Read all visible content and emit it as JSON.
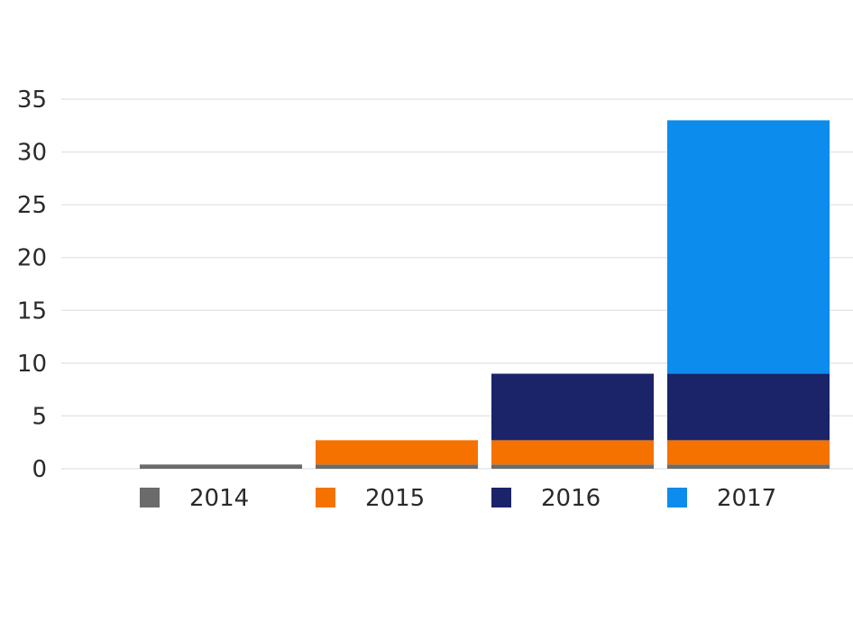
{
  "chart_data": {
    "type": "bar",
    "stacked": true,
    "categories": [
      "2014",
      "2015",
      "2016",
      "2017"
    ],
    "series": [
      {
        "name": "2014",
        "color": "#6b6b6b",
        "values": [
          0.4,
          0.4,
          0.4,
          0.4
        ]
      },
      {
        "name": "2015",
        "color": "#f57200",
        "values": [
          0,
          2.3,
          2.3,
          2.3
        ]
      },
      {
        "name": "2016",
        "color": "#1b2469",
        "values": [
          0,
          0,
          6.3,
          6.3
        ]
      },
      {
        "name": "2017",
        "color": "#0c8cec",
        "values": [
          0,
          0,
          0,
          24
        ]
      }
    ],
    "ylim": [
      0,
      35
    ],
    "yticks": [
      "0",
      "5",
      "10",
      "15",
      "20",
      "25",
      "30",
      "35"
    ],
    "grid": true,
    "legend_position": "bottom",
    "title": "",
    "xlabel": "",
    "ylabel": ""
  }
}
